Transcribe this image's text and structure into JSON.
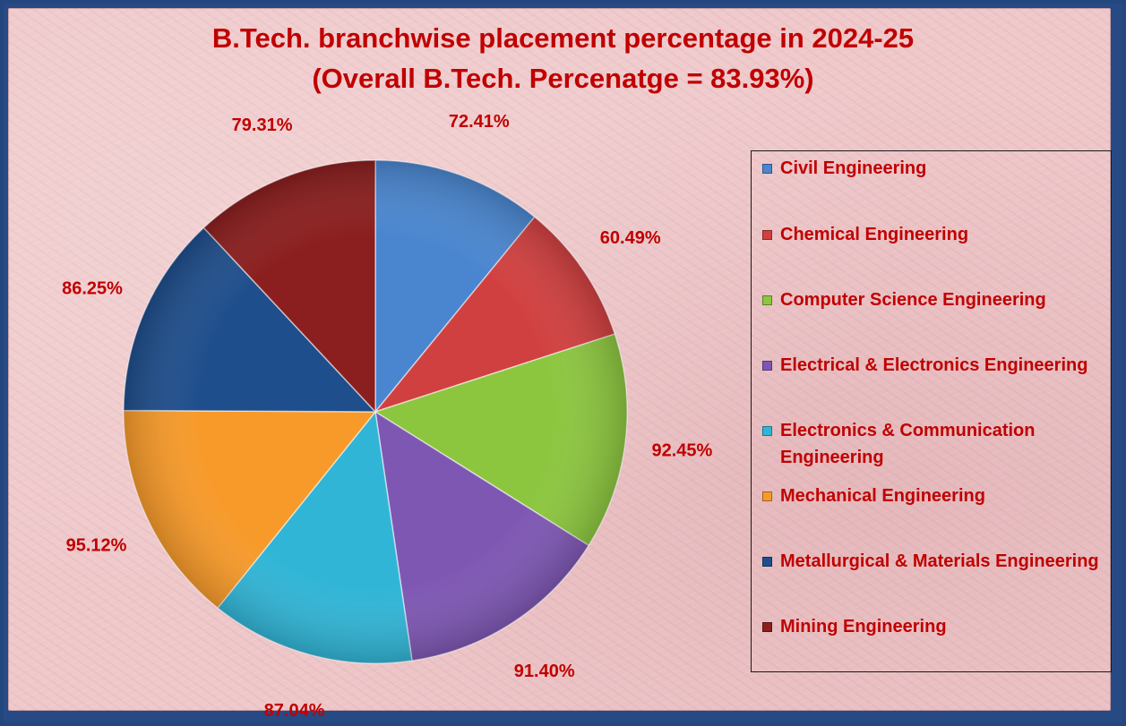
{
  "title_line1": "B.Tech. branchwise placement percentage in 2024-25",
  "title_line2": "(Overall B.Tech. Percenatge = 83.93%)",
  "chart_data": {
    "type": "pie",
    "title": "B.Tech. branchwise placement percentage in 2024-25",
    "subtitle": "(Overall B.Tech. Percenatge = 83.93%)",
    "legend_position": "right",
    "categories": [
      "Civil Engineering",
      "Chemical Engineering",
      "Computer Science Engineering",
      "Electrical & Electronics Engineering",
      "Electronics & Communication Engineering",
      "Mechanical Engineering",
      "Metallurgical & Materials Engineering",
      "Mining Engineering"
    ],
    "values": [
      72.41,
      60.49,
      92.45,
      91.4,
      87.04,
      95.12,
      86.25,
      79.31
    ],
    "data_labels": [
      "72.41%",
      "60.49%",
      "92.45%",
      "91.40%",
      "87.04%",
      "95.12%",
      "86.25%",
      "79.31%"
    ],
    "colors": [
      "#4a86cf",
      "#d14040",
      "#8cc63f",
      "#7e57b3",
      "#31b5d6",
      "#f79a2a",
      "#1f4e8c",
      "#8b1e1e"
    ]
  }
}
